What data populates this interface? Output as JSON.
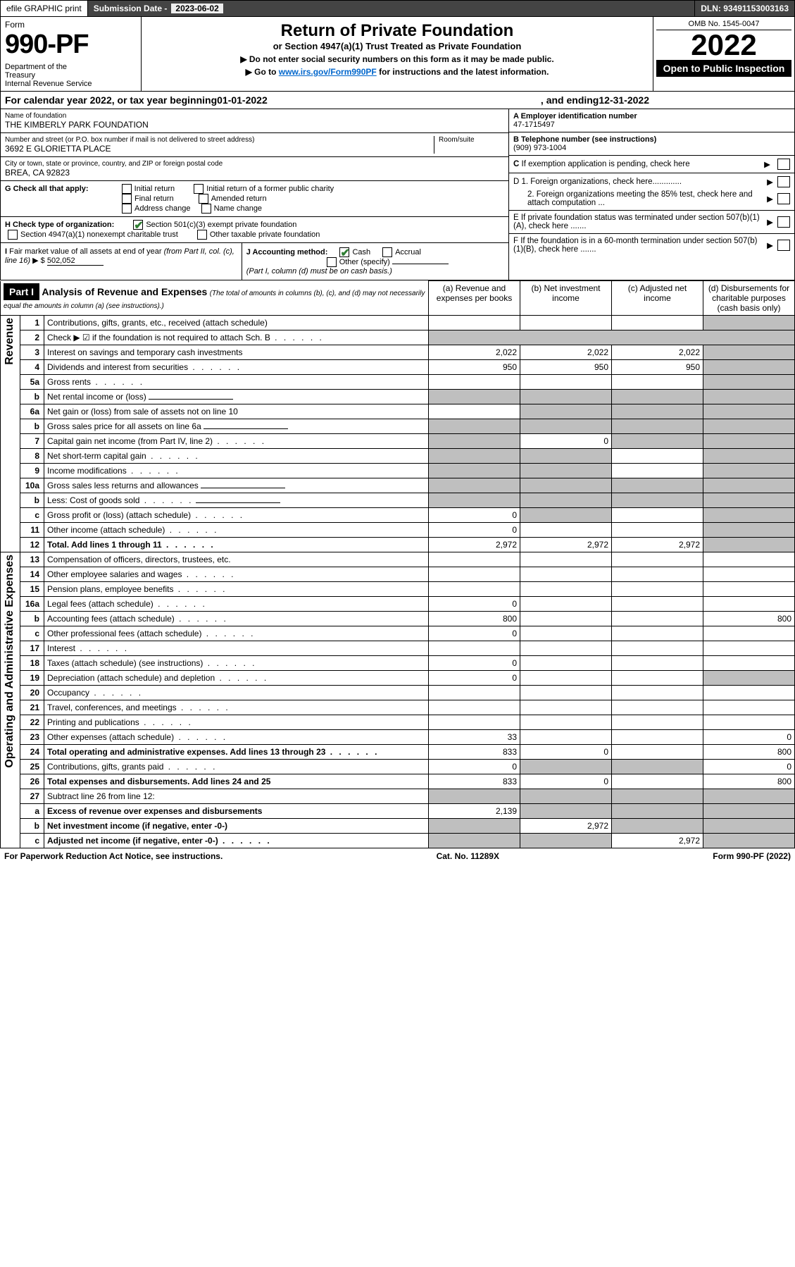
{
  "topbar": {
    "efile": "efile GRAPHIC print",
    "submission_label": "Submission Date - ",
    "submission_date": "2023-06-02",
    "dln": "DLN: 93491153003163"
  },
  "header": {
    "form_label": "Form",
    "form_number": "990-PF",
    "dept": "Department of the Treasury\nInternal Revenue Service",
    "title": "Return of Private Foundation",
    "subtitle": "or Section 4947(a)(1) Trust Treated as Private Foundation",
    "note1": "▶ Do not enter social security numbers on this form as it may be made public.",
    "note2_pre": "▶ Go to ",
    "note2_link": "www.irs.gov/Form990PF",
    "note2_post": " for instructions and the latest information.",
    "omb": "OMB No. 1545-0047",
    "year": "2022",
    "open": "Open to Public Inspection"
  },
  "calyear": {
    "pre": "For calendar year 2022, or tax year beginning ",
    "begin": "01-01-2022",
    "mid": " , and ending ",
    "end": "12-31-2022"
  },
  "info": {
    "name_label": "Name of foundation",
    "name": "THE KIMBERLY PARK FOUNDATION",
    "addr_label": "Number and street (or P.O. box number if mail is not delivered to street address)",
    "room_label": "Room/suite",
    "addr": "3692 E GLORIETTA PLACE",
    "city_label": "City or town, state or province, country, and ZIP or foreign postal code",
    "city": "BREA, CA  92823",
    "a_label": "A Employer identification number",
    "a_val": "47-1715497",
    "b_label": "B Telephone number (see instructions)",
    "b_val": "(909) 973-1004",
    "c_label": "C If exemption application is pending, check here",
    "d1": "D 1. Foreign organizations, check here.............",
    "d2": "2. Foreign organizations meeting the 85% test, check here and attach computation ...",
    "e": "E  If private foundation status was terminated under section 507(b)(1)(A), check here .......",
    "f": "F  If the foundation is in a 60-month termination under section 507(b)(1)(B), check here .......",
    "g_label": "G Check all that apply:",
    "g_opts": [
      "Initial return",
      "Initial return of a former public charity",
      "Final return",
      "Amended return",
      "Address change",
      "Name change"
    ],
    "h_label": "H Check type of organization:",
    "h_opts": [
      "Section 501(c)(3) exempt private foundation",
      "Section 4947(a)(1) nonexempt charitable trust",
      "Other taxable private foundation"
    ],
    "i_label": "I Fair market value of all assets at end of year (from Part II, col. (c), line 16) ▶ $",
    "i_val": "502,052",
    "j_label": "J Accounting method:",
    "j_opts": [
      "Cash",
      "Accrual",
      "Other (specify)"
    ],
    "j_note": "(Part I, column (d) must be on cash basis.)"
  },
  "part1": {
    "label": "Part I",
    "title": "Analysis of Revenue and Expenses",
    "title_note": " (The total of amounts in columns (b), (c), and (d) may not necessarily equal the amounts in column (a) (see instructions).)",
    "cols": {
      "a": "(a)   Revenue and expenses per books",
      "b": "(b)   Net investment income",
      "c": "(c)   Adjusted net income",
      "d": "(d)   Disbursements for charitable purposes (cash basis only)"
    },
    "side_rev": "Revenue",
    "side_exp": "Operating and Administrative Expenses"
  },
  "rows": [
    {
      "n": "1",
      "d": "Contributions, gifts, grants, etc., received (attach schedule)",
      "a": "",
      "b": "",
      "c": "",
      "dcol": "",
      "shade": [
        "d"
      ]
    },
    {
      "n": "2",
      "d": "Check ▶ ☑ if the foundation is not required to attach Sch. B",
      "dots": true,
      "nobox": true
    },
    {
      "n": "3",
      "d": "Interest on savings and temporary cash investments",
      "a": "2,022",
      "b": "2,022",
      "c": "2,022",
      "dcol": "",
      "shade": [
        "d"
      ]
    },
    {
      "n": "4",
      "d": "Dividends and interest from securities",
      "dots": true,
      "a": "950",
      "b": "950",
      "c": "950",
      "dcol": "",
      "shade": [
        "d"
      ]
    },
    {
      "n": "5a",
      "d": "Gross rents",
      "dots": true,
      "a": "",
      "b": "",
      "c": "",
      "dcol": "",
      "shade": [
        "d"
      ]
    },
    {
      "n": "b",
      "d": "Net rental income or (loss)",
      "uline": true,
      "shade": [
        "a",
        "b",
        "c",
        "d"
      ]
    },
    {
      "n": "6a",
      "d": "Net gain or (loss) from sale of assets not on line 10",
      "a": "",
      "b": "",
      "c": "",
      "dcol": "",
      "shade": [
        "b",
        "c",
        "d"
      ]
    },
    {
      "n": "b",
      "d": "Gross sales price for all assets on line 6a",
      "uline": true,
      "shade": [
        "a",
        "b",
        "c",
        "d"
      ]
    },
    {
      "n": "7",
      "d": "Capital gain net income (from Part IV, line 2)",
      "dots": true,
      "b": "0",
      "shade": [
        "a",
        "c",
        "d"
      ]
    },
    {
      "n": "8",
      "d": "Net short-term capital gain",
      "dots": true,
      "shade": [
        "a",
        "b",
        "d"
      ]
    },
    {
      "n": "9",
      "d": "Income modifications",
      "dots": true,
      "shade": [
        "a",
        "b",
        "d"
      ]
    },
    {
      "n": "10a",
      "d": "Gross sales less returns and allowances",
      "uline": true,
      "shade": [
        "a",
        "b",
        "c",
        "d"
      ]
    },
    {
      "n": "b",
      "d": "Less: Cost of goods sold",
      "dots": true,
      "uline": true,
      "shade": [
        "a",
        "b",
        "c",
        "d"
      ]
    },
    {
      "n": "c",
      "d": "Gross profit or (loss) (attach schedule)",
      "dots": true,
      "a": "0",
      "shade": [
        "b",
        "d"
      ]
    },
    {
      "n": "11",
      "d": "Other income (attach schedule)",
      "dots": true,
      "a": "0",
      "shade": [
        "d"
      ]
    },
    {
      "n": "12",
      "d": "Total. Add lines 1 through 11",
      "bold": true,
      "dots": true,
      "a": "2,972",
      "b": "2,972",
      "c": "2,972",
      "shade": [
        "d"
      ]
    },
    {
      "n": "13",
      "d": "Compensation of officers, directors, trustees, etc.",
      "a": "",
      "b": "",
      "c": "",
      "dcol": ""
    },
    {
      "n": "14",
      "d": "Other employee salaries and wages",
      "dots": true
    },
    {
      "n": "15",
      "d": "Pension plans, employee benefits",
      "dots": true
    },
    {
      "n": "16a",
      "d": "Legal fees (attach schedule)",
      "dots": true,
      "a": "0"
    },
    {
      "n": "b",
      "d": "Accounting fees (attach schedule)",
      "dots": true,
      "a": "800",
      "dcol": "800"
    },
    {
      "n": "c",
      "d": "Other professional fees (attach schedule)",
      "dots": true,
      "a": "0"
    },
    {
      "n": "17",
      "d": "Interest",
      "dots": true
    },
    {
      "n": "18",
      "d": "Taxes (attach schedule) (see instructions)",
      "dots": true,
      "a": "0"
    },
    {
      "n": "19",
      "d": "Depreciation (attach schedule) and depletion",
      "dots": true,
      "a": "0",
      "shade": [
        "d"
      ]
    },
    {
      "n": "20",
      "d": "Occupancy",
      "dots": true
    },
    {
      "n": "21",
      "d": "Travel, conferences, and meetings",
      "dots": true
    },
    {
      "n": "22",
      "d": "Printing and publications",
      "dots": true
    },
    {
      "n": "23",
      "d": "Other expenses (attach schedule)",
      "dots": true,
      "a": "33",
      "dcol": "0"
    },
    {
      "n": "24",
      "d": "Total operating and administrative expenses. Add lines 13 through 23",
      "bold": true,
      "dots": true,
      "a": "833",
      "b": "0",
      "dcol": "800"
    },
    {
      "n": "25",
      "d": "Contributions, gifts, grants paid",
      "dots": true,
      "a": "0",
      "dcol": "0",
      "shade": [
        "b",
        "c"
      ]
    },
    {
      "n": "26",
      "d": "Total expenses and disbursements. Add lines 24 and 25",
      "bold": true,
      "a": "833",
      "b": "0",
      "dcol": "800"
    },
    {
      "n": "27",
      "d": "Subtract line 26 from line 12:",
      "shade": [
        "a",
        "b",
        "c",
        "d"
      ]
    },
    {
      "n": "a",
      "d": "Excess of revenue over expenses and disbursements",
      "bold": true,
      "a": "2,139",
      "shade": [
        "b",
        "c",
        "d"
      ]
    },
    {
      "n": "b",
      "d": "Net investment income (if negative, enter -0-)",
      "bold": true,
      "b": "2,972",
      "shade": [
        "a",
        "c",
        "d"
      ]
    },
    {
      "n": "c",
      "d": "Adjusted net income (if negative, enter -0-)",
      "bold": true,
      "dots": true,
      "c": "2,972",
      "shade": [
        "a",
        "b",
        "d"
      ]
    }
  ],
  "footer": {
    "left": "For Paperwork Reduction Act Notice, see instructions.",
    "mid": "Cat. No. 11289X",
    "right": "Form 990-PF (2022)"
  }
}
